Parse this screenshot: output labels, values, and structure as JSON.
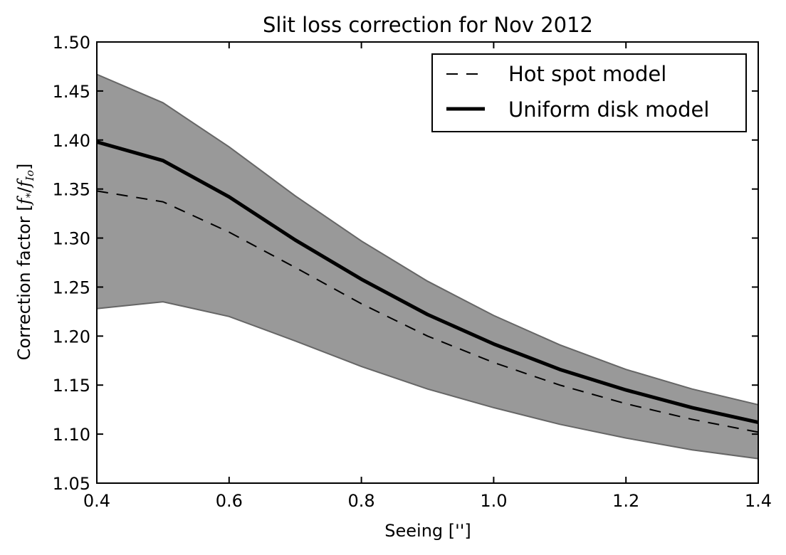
{
  "chart_data": {
    "type": "line",
    "title": "Slit loss correction for Nov 2012",
    "xlabel": "Seeing ['']",
    "ylabel_prefix": "Correction factor [",
    "ylabel_f": "f",
    "ylabel_star": "*",
    "ylabel_slash": "/",
    "ylabel_io": "Io",
    "ylabel_suffix": "]",
    "xlim": [
      0.4,
      1.4
    ],
    "ylim": [
      1.05,
      1.5
    ],
    "xticks": [
      "0.4",
      "0.6",
      "0.8",
      "1.0",
      "1.2",
      "1.4"
    ],
    "yticks": [
      "1.05",
      "1.10",
      "1.15",
      "1.20",
      "1.25",
      "1.30",
      "1.35",
      "1.40",
      "1.45",
      "1.50"
    ],
    "x": [
      0.4,
      0.5,
      0.6,
      0.7,
      0.8,
      0.9,
      1.0,
      1.1,
      1.2,
      1.3,
      1.4
    ],
    "band": {
      "upper": [
        1.467,
        1.438,
        1.393,
        1.343,
        1.297,
        1.256,
        1.221,
        1.191,
        1.166,
        1.146,
        1.13
      ],
      "lower": [
        1.228,
        1.235,
        1.22,
        1.195,
        1.169,
        1.146,
        1.127,
        1.11,
        1.096,
        1.084,
        1.075
      ],
      "color": "#999999",
      "edge_color": "#666666"
    },
    "series": [
      {
        "name": "Hot spot model",
        "style": "dashed",
        "color": "#000000",
        "values": [
          1.348,
          1.337,
          1.306,
          1.27,
          1.233,
          1.2,
          1.173,
          1.15,
          1.131,
          1.115,
          1.102
        ]
      },
      {
        "name": "Uniform disk model",
        "style": "solid",
        "color": "#000000",
        "values": [
          1.398,
          1.379,
          1.342,
          1.298,
          1.258,
          1.222,
          1.192,
          1.166,
          1.145,
          1.127,
          1.112
        ]
      }
    ],
    "legend_position": "top-right",
    "grid": false
  }
}
